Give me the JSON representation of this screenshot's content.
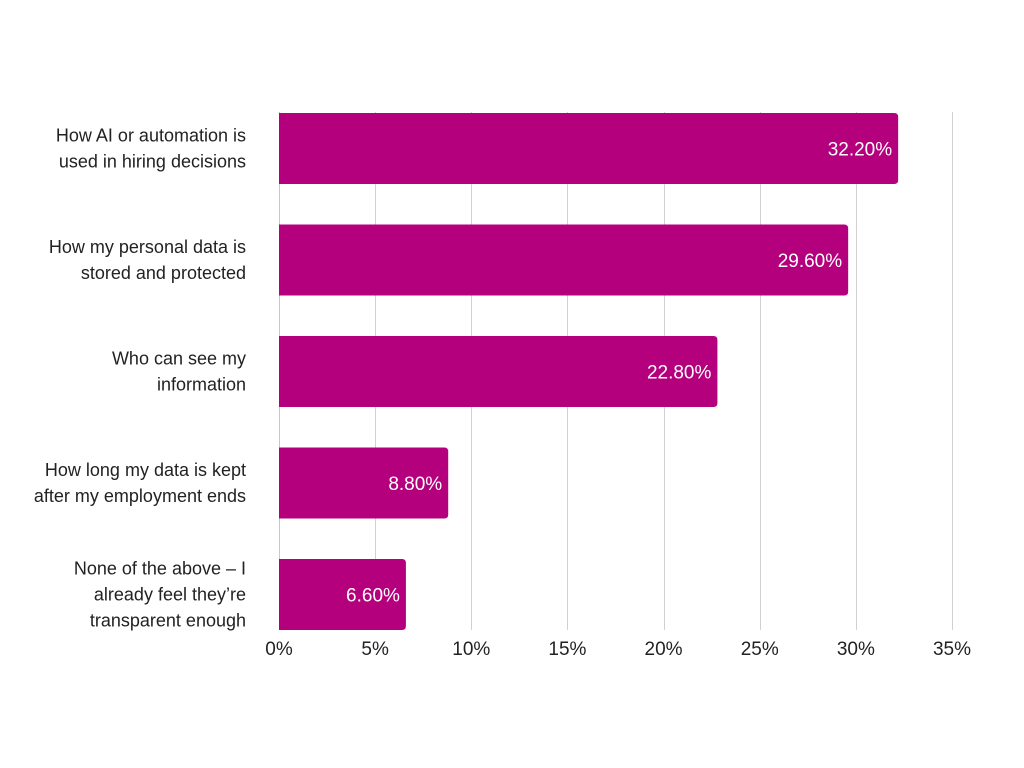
{
  "chart_data": {
    "type": "bar",
    "orientation": "horizontal",
    "categories": [
      "How AI or automation is used in hiring decisions",
      "How my personal data is stored and protected",
      "Who can see my information",
      "How long my data is kept after my employment ends",
      "None of the above – I already feel they’re transparent enough"
    ],
    "category_lines": [
      [
        "How AI or automation is",
        "used in hiring decisions"
      ],
      [
        "How my personal data is",
        "stored and protected"
      ],
      [
        "Who can see my",
        "information"
      ],
      [
        "How long my data is kept",
        "after my employment ends"
      ],
      [
        "None of the above – I",
        "already feel they’re",
        "transparent enough"
      ]
    ],
    "values": [
      32.2,
      29.6,
      22.8,
      8.8,
      6.6
    ],
    "value_labels": [
      "32.20%",
      "29.60%",
      "22.80%",
      "8.80%",
      "6.60%"
    ],
    "xlim": [
      0,
      35
    ],
    "x_ticks": [
      0,
      5,
      10,
      15,
      20,
      25,
      30,
      35
    ],
    "x_tick_labels": [
      "0%",
      "5%",
      "10%",
      "15%",
      "20%",
      "25%",
      "30%",
      "35%"
    ],
    "title": "",
    "xlabel": "",
    "ylabel": "",
    "grid": "vertical",
    "legend": "none",
    "bar_color": "#b5007e",
    "value_label_color": "#ffffff"
  }
}
